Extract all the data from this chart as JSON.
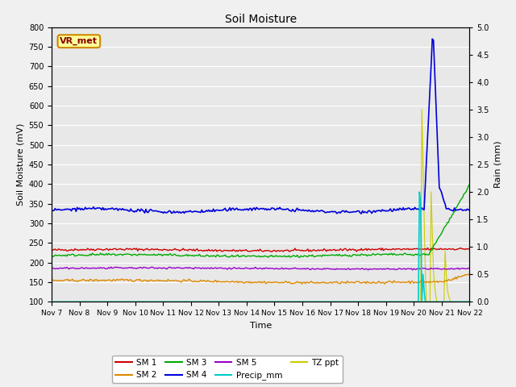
{
  "title": "Soil Moisture",
  "xlabel": "Time",
  "ylabel_left": "Soil Moisture (mV)",
  "ylabel_right": "Rain (mm)",
  "ylim_left": [
    100,
    800
  ],
  "ylim_right": [
    0.0,
    5.0
  ],
  "yticks_left": [
    100,
    150,
    200,
    250,
    300,
    350,
    400,
    450,
    500,
    550,
    600,
    650,
    700,
    750,
    800
  ],
  "yticks_right": [
    0.0,
    0.5,
    1.0,
    1.5,
    2.0,
    2.5,
    3.0,
    3.5,
    4.0,
    4.5,
    5.0
  ],
  "n_days": 15,
  "sm1_base": 232,
  "sm1_color": "#cc0000",
  "sm2_base": 152,
  "sm2_color": "#dd8800",
  "sm3_base": 218,
  "sm3_color": "#00aa00",
  "sm4_base": 333,
  "sm4_color": "#0000dd",
  "sm5_base": 185,
  "sm5_color": "#9900cc",
  "precip_color": "#00cccc",
  "tzppt_color": "#cccc00",
  "annotation_text": "VR_met",
  "annotation_bg": "#ffff99",
  "annotation_border": "#cc8800",
  "annotation_text_color": "#880000",
  "bg_color": "#e8e8e8",
  "grid_color": "#ffffff",
  "fig_facecolor": "#f0f0f0"
}
